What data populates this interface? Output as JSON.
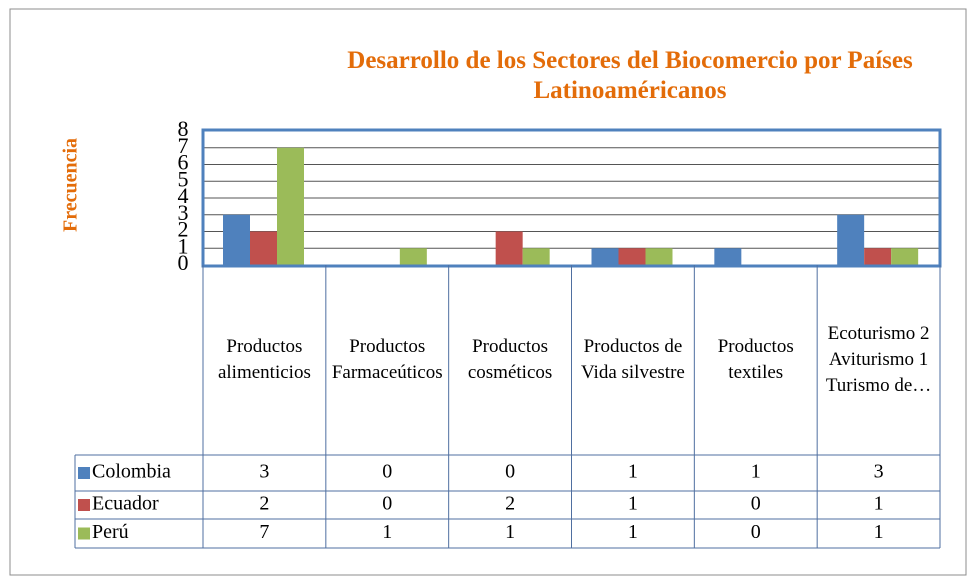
{
  "chart_data": {
    "type": "bar",
    "title": "Desarrollo de los Sectores del Biocomercio por Países Latinoaméricanos",
    "y_label": "Frecuencia",
    "categories": [
      "Productos alimenticios",
      "Productos Farmaceúticos",
      "Productos cosméticos",
      "Productos de Vida silvestre",
      "Productos textiles",
      "Ecoturismo 2 Aviturismo 1 Turismo de…"
    ],
    "series": [
      {
        "name": "Colombia",
        "color": "#4f81bd",
        "values": [
          3,
          0,
          0,
          1,
          1,
          3
        ]
      },
      {
        "name": "Ecuador",
        "color": "#c0504d",
        "values": [
          2,
          0,
          2,
          1,
          0,
          1
        ]
      },
      {
        "name": "Perú",
        "color": "#9bbb59",
        "values": [
          7,
          1,
          1,
          1,
          0,
          1
        ]
      }
    ],
    "ylim": [
      0,
      8
    ],
    "yticks": [
      0,
      1,
      2,
      3,
      4,
      5,
      6,
      7,
      8
    ],
    "grid": true,
    "data_table": true
  }
}
